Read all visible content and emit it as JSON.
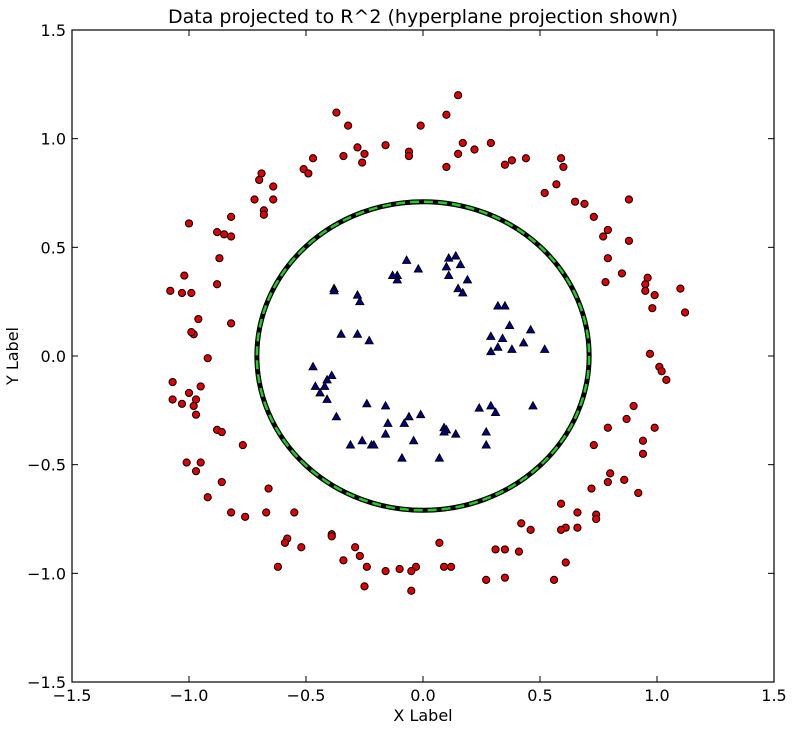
{
  "chart_data": {
    "type": "scatter",
    "title": "Data projected to R^2 (hyperplane projection shown)",
    "xlabel": "X Label",
    "ylabel": "Y Label",
    "xlim": [
      -1.5,
      1.5
    ],
    "ylim": [
      -1.5,
      1.5
    ],
    "xticks": [
      -1.5,
      -1.0,
      -0.5,
      0.0,
      0.5,
      1.0,
      1.5
    ],
    "yticks": [
      -1.5,
      -1.0,
      -0.5,
      0.0,
      0.5,
      1.0,
      1.5
    ],
    "xtick_labels": [
      "−1.5",
      "−1.0",
      "−0.5",
      "0.0",
      "0.5",
      "1.0",
      "1.5"
    ],
    "ytick_labels": [
      "−1.5",
      "−1.0",
      "−0.5",
      "0.0",
      "0.5",
      "1.0",
      "1.5"
    ],
    "grid": false,
    "colors": {
      "outer": "#e00000",
      "inner": "#00008b",
      "circle_line": "#000000",
      "circle_dash": "#22cc22"
    },
    "series": [
      {
        "marker": "circle",
        "points": [
          [
            0.15,
            1.2
          ],
          [
            -0.37,
            1.12
          ],
          [
            0.1,
            1.11
          ],
          [
            -0.32,
            1.06
          ],
          [
            -0.01,
            1.06
          ],
          [
            0.17,
            0.98
          ],
          [
            0.29,
            0.98
          ],
          [
            -0.28,
            0.96
          ],
          [
            -0.16,
            0.97
          ],
          [
            0.22,
            0.95
          ],
          [
            -0.06,
            0.94
          ],
          [
            0.15,
            0.93
          ],
          [
            -0.25,
            0.93
          ],
          [
            -0.06,
            0.92
          ],
          [
            -0.47,
            0.91
          ],
          [
            -0.34,
            0.92
          ],
          [
            0.38,
            0.9
          ],
          [
            0.44,
            0.91
          ],
          [
            0.59,
            0.91
          ],
          [
            -0.26,
            0.89
          ],
          [
            0.35,
            0.88
          ],
          [
            -0.51,
            0.86
          ],
          [
            0.6,
            0.87
          ],
          [
            0.1,
            0.87
          ],
          [
            -0.49,
            0.84
          ],
          [
            -0.69,
            0.84
          ],
          [
            -0.7,
            0.81
          ],
          [
            -0.64,
            0.78
          ],
          [
            0.57,
            0.79
          ],
          [
            0.52,
            0.75
          ],
          [
            -0.72,
            0.72
          ],
          [
            -0.64,
            0.72
          ],
          [
            0.88,
            0.72
          ],
          [
            0.65,
            0.71
          ],
          [
            0.69,
            0.7
          ],
          [
            -0.68,
            0.67
          ],
          [
            -0.68,
            0.65
          ],
          [
            -0.82,
            0.64
          ],
          [
            0.73,
            0.64
          ],
          [
            -1.0,
            0.61
          ],
          [
            0.79,
            0.58
          ],
          [
            -0.88,
            0.57
          ],
          [
            -0.85,
            0.56
          ],
          [
            0.77,
            0.55
          ],
          [
            -0.82,
            0.55
          ],
          [
            0.88,
            0.53
          ],
          [
            0.79,
            0.45
          ],
          [
            -0.87,
            0.45
          ],
          [
            0.85,
            0.38
          ],
          [
            -1.02,
            0.37
          ],
          [
            0.96,
            0.36
          ],
          [
            0.95,
            0.33
          ],
          [
            -0.88,
            0.33
          ],
          [
            0.78,
            0.34
          ],
          [
            -1.08,
            0.3
          ],
          [
            0.95,
            0.3
          ],
          [
            -1.03,
            0.29
          ],
          [
            -0.99,
            0.29
          ],
          [
            1.1,
            0.31
          ],
          [
            0.99,
            0.28
          ],
          [
            0.98,
            0.22
          ],
          [
            1.12,
            0.2
          ],
          [
            -0.96,
            0.17
          ],
          [
            -0.82,
            0.15
          ],
          [
            -0.98,
            0.1
          ],
          [
            -0.99,
            0.11
          ],
          [
            0.97,
            0.01
          ],
          [
            -0.92,
            -0.01
          ],
          [
            1.01,
            -0.05
          ],
          [
            1.02,
            -0.07
          ],
          [
            1.04,
            -0.11
          ],
          [
            -1.07,
            -0.12
          ],
          [
            -0.95,
            -0.14
          ],
          [
            -1.0,
            -0.17
          ],
          [
            -0.97,
            -0.2
          ],
          [
            -1.07,
            -0.2
          ],
          [
            -1.03,
            -0.22
          ],
          [
            -0.98,
            -0.23
          ],
          [
            0.9,
            -0.23
          ],
          [
            0.87,
            -0.29
          ],
          [
            -0.97,
            -0.27
          ],
          [
            0.99,
            -0.33
          ],
          [
            0.79,
            -0.33
          ],
          [
            -0.88,
            -0.34
          ],
          [
            -0.86,
            -0.35
          ],
          [
            0.94,
            -0.39
          ],
          [
            -0.77,
            -0.41
          ],
          [
            0.73,
            -0.41
          ],
          [
            0.94,
            -0.45
          ],
          [
            -1.01,
            -0.49
          ],
          [
            -0.95,
            -0.49
          ],
          [
            -0.97,
            -0.53
          ],
          [
            0.8,
            -0.54
          ],
          [
            0.86,
            -0.57
          ],
          [
            -0.86,
            -0.58
          ],
          [
            0.79,
            -0.58
          ],
          [
            0.72,
            -0.61
          ],
          [
            -0.66,
            -0.61
          ],
          [
            0.92,
            -0.63
          ],
          [
            -0.92,
            -0.65
          ],
          [
            0.59,
            -0.68
          ],
          [
            -0.82,
            -0.72
          ],
          [
            -0.67,
            -0.72
          ],
          [
            -0.55,
            -0.72
          ],
          [
            0.66,
            -0.72
          ],
          [
            0.74,
            -0.73
          ],
          [
            -0.76,
            -0.74
          ],
          [
            0.74,
            -0.75
          ],
          [
            0.42,
            -0.77
          ],
          [
            0.61,
            -0.79
          ],
          [
            0.66,
            -0.79
          ],
          [
            0.46,
            -0.8
          ],
          [
            0.59,
            -0.8
          ],
          [
            -0.39,
            -0.82
          ],
          [
            -0.39,
            -0.83
          ],
          [
            -0.58,
            -0.84
          ],
          [
            0.07,
            -0.86
          ],
          [
            -0.59,
            -0.86
          ],
          [
            -0.52,
            -0.88
          ],
          [
            -0.29,
            -0.88
          ],
          [
            0.31,
            -0.89
          ],
          [
            0.35,
            -0.89
          ],
          [
            0.41,
            -0.9
          ],
          [
            -0.27,
            -0.92
          ],
          [
            -0.34,
            -0.94
          ],
          [
            0.61,
            -0.95
          ],
          [
            -0.03,
            -0.97
          ],
          [
            -0.24,
            -0.97
          ],
          [
            -0.62,
            -0.97
          ],
          [
            0.09,
            -0.97
          ],
          [
            0.12,
            -0.97
          ],
          [
            -0.1,
            -0.98
          ],
          [
            -0.16,
            -0.99
          ],
          [
            -0.05,
            -0.99
          ],
          [
            0.35,
            -1.02
          ],
          [
            0.27,
            -1.03
          ],
          [
            0.56,
            -1.03
          ],
          [
            -0.25,
            -1.06
          ],
          [
            -0.05,
            -1.08
          ]
        ]
      },
      {
        "marker": "triangle",
        "points": [
          [
            0.14,
            0.46
          ],
          [
            0.11,
            0.45
          ],
          [
            -0.07,
            0.44
          ],
          [
            0.16,
            0.42
          ],
          [
            -0.11,
            0.37
          ],
          [
            -0.13,
            0.37
          ],
          [
            0.1,
            0.41
          ],
          [
            0.11,
            0.37
          ],
          [
            -0.02,
            0.4
          ],
          [
            0.19,
            0.35
          ],
          [
            -0.11,
            0.35
          ],
          [
            0.15,
            0.31
          ],
          [
            0.17,
            0.29
          ],
          [
            -0.38,
            0.31
          ],
          [
            -0.38,
            0.3
          ],
          [
            -0.28,
            0.28
          ],
          [
            -0.27,
            0.25
          ],
          [
            0.32,
            0.23
          ],
          [
            0.35,
            0.23
          ],
          [
            0.37,
            0.14
          ],
          [
            0.46,
            0.12
          ],
          [
            0.29,
            0.09
          ],
          [
            -0.35,
            0.1
          ],
          [
            -0.28,
            0.1
          ],
          [
            -0.23,
            0.07
          ],
          [
            0.34,
            0.08
          ],
          [
            0.43,
            0.06
          ],
          [
            0.32,
            0.04
          ],
          [
            0.29,
            0.02
          ],
          [
            0.38,
            0.03
          ],
          [
            0.52,
            0.03
          ],
          [
            -0.47,
            -0.05
          ],
          [
            -0.39,
            -0.09
          ],
          [
            -0.41,
            -0.11
          ],
          [
            -0.46,
            -0.14
          ],
          [
            -0.42,
            -0.14
          ],
          [
            -0.44,
            -0.17
          ],
          [
            -0.41,
            -0.2
          ],
          [
            0.24,
            -0.24
          ],
          [
            -0.24,
            -0.22
          ],
          [
            -0.16,
            -0.23
          ],
          [
            -0.06,
            -0.28
          ],
          [
            0.47,
            -0.23
          ],
          [
            0.29,
            -0.23
          ],
          [
            0.31,
            -0.26
          ],
          [
            -0.01,
            -0.27
          ],
          [
            -0.37,
            -0.28
          ],
          [
            -0.15,
            -0.31
          ],
          [
            -0.08,
            -0.31
          ],
          [
            0.09,
            -0.33
          ],
          [
            0.1,
            -0.34
          ],
          [
            0.14,
            -0.36
          ],
          [
            -0.16,
            -0.36
          ],
          [
            -0.26,
            -0.39
          ],
          [
            -0.04,
            -0.39
          ],
          [
            0.27,
            -0.41
          ],
          [
            -0.31,
            -0.41
          ],
          [
            -0.22,
            -0.41
          ],
          [
            -0.09,
            -0.47
          ],
          [
            0.07,
            -0.47
          ],
          [
            0.09,
            -0.35
          ],
          [
            -0.21,
            -0.41
          ],
          [
            0.27,
            -0.35
          ]
        ]
      }
    ],
    "circle": {
      "center": [
        0.0,
        0.0
      ],
      "radius": 0.71
    }
  }
}
